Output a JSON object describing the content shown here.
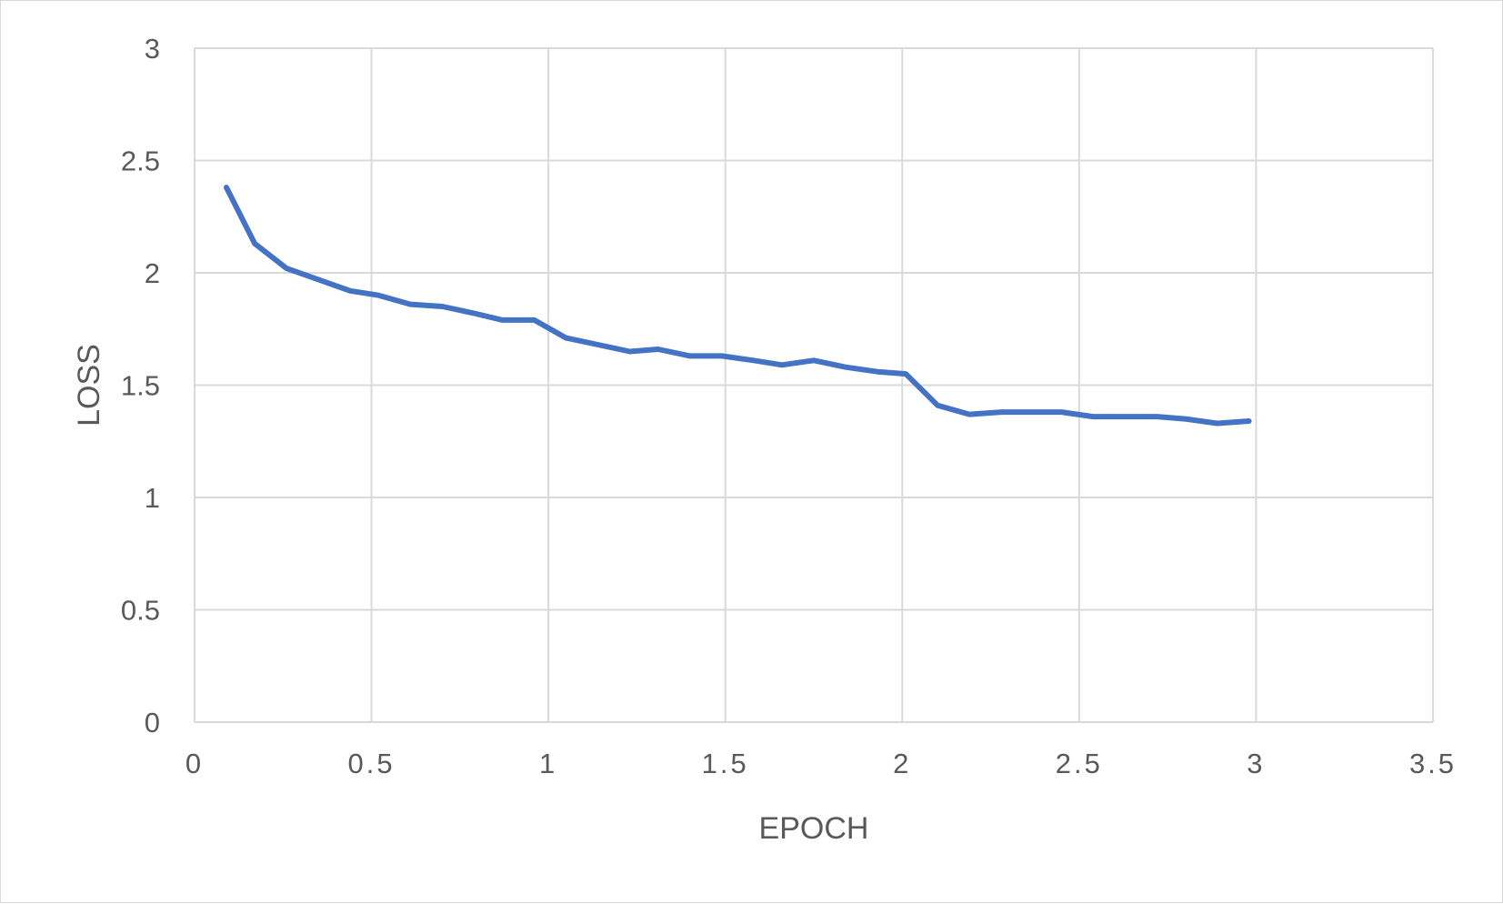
{
  "chart_data": {
    "type": "line",
    "title": "",
    "xlabel": "EPOCH",
    "ylabel": "LOSS",
    "xlim": [
      0,
      3.5
    ],
    "ylim": [
      0,
      3
    ],
    "x_ticks": [
      "0",
      "0.5",
      "1",
      "1.5",
      "2",
      "2.5",
      "3",
      "3.5"
    ],
    "y_ticks": [
      "0",
      "0.5",
      "1",
      "1.5",
      "2",
      "2.5",
      "3"
    ],
    "grid": true,
    "legend": "none",
    "series": [
      {
        "color": "#4472c4",
        "x": [
          0.09,
          0.17,
          0.26,
          0.35,
          0.44,
          0.52,
          0.61,
          0.7,
          0.79,
          0.87,
          0.96,
          1.05,
          1.14,
          1.23,
          1.31,
          1.4,
          1.49,
          1.58,
          1.66,
          1.75,
          1.84,
          1.93,
          2.01,
          2.1,
          2.19,
          2.28,
          2.37,
          2.45,
          2.54,
          2.63,
          2.72,
          2.8,
          2.89,
          2.98
        ],
        "y": [
          2.38,
          2.13,
          2.02,
          1.97,
          1.92,
          1.9,
          1.86,
          1.85,
          1.82,
          1.79,
          1.79,
          1.71,
          1.68,
          1.65,
          1.66,
          1.63,
          1.63,
          1.61,
          1.59,
          1.61,
          1.58,
          1.56,
          1.55,
          1.41,
          1.37,
          1.38,
          1.38,
          1.38,
          1.36,
          1.36,
          1.36,
          1.35,
          1.33,
          1.34
        ]
      }
    ]
  }
}
